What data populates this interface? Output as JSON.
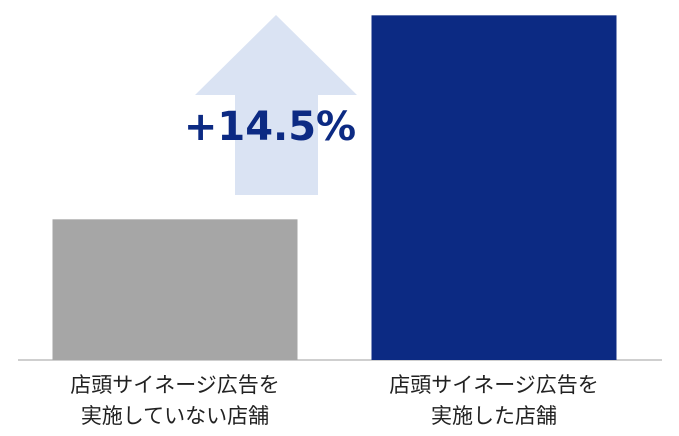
{
  "chart_data": {
    "type": "bar",
    "annotation": "+14.5%",
    "categories": [
      "店頭サイネージ広告を\n実施していない店舗",
      "店頭サイネージ広告を\n実施した店舗"
    ],
    "values": [
      100,
      114.5
    ],
    "colors": [
      "#a6a6a6",
      "#0c2a83"
    ],
    "ylim": [
      90,
      115
    ]
  }
}
